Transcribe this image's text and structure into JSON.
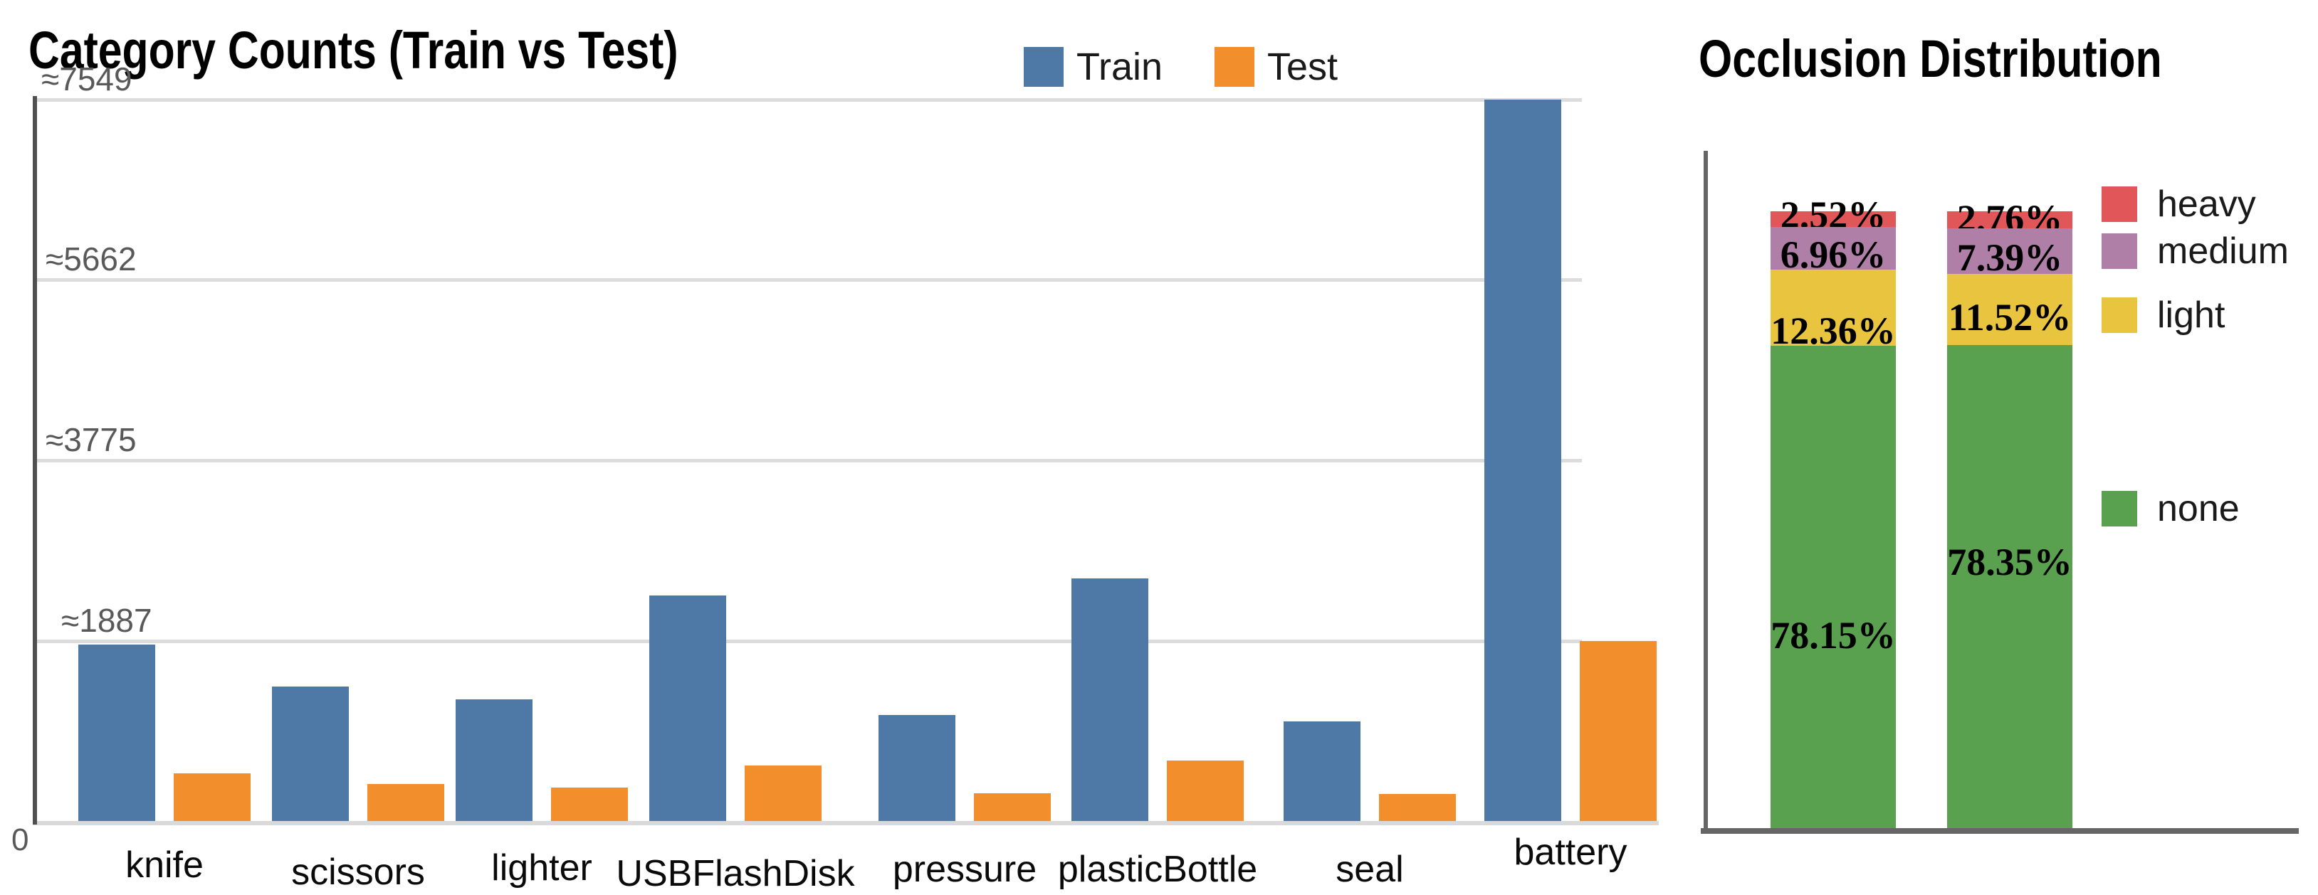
{
  "chart_data": [
    {
      "type": "bar",
      "title": "Category Counts (Train vs Test)",
      "categories": [
        "knife",
        "scissors",
        "lighter",
        "USBFlashDisk",
        "pressure",
        "plasticBottle",
        "seal",
        "battery"
      ],
      "series": [
        {
          "name": "Train",
          "color": "#4e79a7",
          "values": [
            1850,
            1410,
            1270,
            2360,
            1110,
            2540,
            1040,
            7549
          ]
        },
        {
          "name": "Test",
          "color": "#f28e2b",
          "values": [
            500,
            390,
            350,
            580,
            290,
            630,
            280,
            1887
          ]
        }
      ],
      "y_ticks": {
        "zero_label": "0",
        "labels": [
          "≈1887",
          "≈3775",
          "≈5662",
          "≈7549"
        ],
        "values": [
          1887,
          3775,
          5662,
          7549
        ]
      },
      "ylim": [
        0,
        7549
      ],
      "grid": "horizontal",
      "legend_position": "top",
      "xlabel": "",
      "ylabel": ""
    },
    {
      "type": "bar",
      "subtype": "stacked-percent",
      "title": "Occlusion Distribution",
      "bars_count": 2,
      "series": [
        {
          "name": "heavy",
          "color": "#e15759",
          "values": [
            2.52,
            2.76
          ]
        },
        {
          "name": "medium",
          "color": "#b07fa8",
          "values": [
            6.96,
            7.39
          ]
        },
        {
          "name": "light",
          "color": "#e9c53f",
          "values": [
            12.36,
            11.52
          ]
        },
        {
          "name": "none",
          "color": "#59a14f",
          "values": [
            78.15,
            78.35
          ]
        }
      ],
      "value_labels": [
        [
          "2.52%",
          "6.96%",
          "12.36%",
          "78.15%"
        ],
        [
          "2.76%",
          "7.39%",
          "11.52%",
          "78.35%"
        ]
      ],
      "ylim": [
        0,
        100
      ],
      "grid": "off",
      "legend_position": "right",
      "xlabel": "",
      "ylabel": ""
    }
  ],
  "colors": {
    "grid_line": "#dcdcdc",
    "baseline_left": "#d9d9d9",
    "axis_left": "#505050",
    "axis_right": "#666666",
    "tick_text": "#595959"
  }
}
